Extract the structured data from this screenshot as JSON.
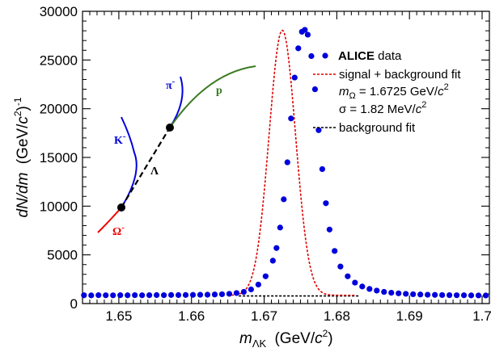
{
  "chart_data": {
    "type": "scatter",
    "x_axis": {
      "range": [
        1.645,
        1.701
      ],
      "ticks": [
        1.65,
        1.66,
        1.67,
        1.68,
        1.69,
        1.7
      ],
      "tick_labels": [
        "1.65",
        "1.66",
        "1.67",
        "1.68",
        "1.69",
        "1.7"
      ],
      "label_main": "m",
      "label_sub": "ΛK",
      "label_unit": "(GeV/",
      "label_unit_c": "c",
      "label_unit_exp": "2",
      "label_unit_close": ")"
    },
    "y_axis": {
      "range": [
        0,
        30000
      ],
      "ticks": [
        0,
        5000,
        10000,
        15000,
        20000,
        25000,
        30000
      ],
      "tick_labels": [
        "0",
        "5000",
        "10000",
        "15000",
        "20000",
        "25000",
        "30000"
      ],
      "label_part1": "dN/dm",
      "label_part2": "(GeV/",
      "label_part3": "c",
      "label_part4": "2",
      "label_part5": ")",
      "label_part6": "-1"
    },
    "series": [
      {
        "name": "ALICE data",
        "marker": "circle",
        "color": "#0000dd",
        "points": [
          [
            1.6452,
            850
          ],
          [
            1.6462,
            840
          ],
          [
            1.6472,
            860
          ],
          [
            1.6482,
            850
          ],
          [
            1.6492,
            845
          ],
          [
            1.6502,
            860
          ],
          [
            1.6512,
            850
          ],
          [
            1.6522,
            865
          ],
          [
            1.6532,
            850
          ],
          [
            1.6542,
            860
          ],
          [
            1.6552,
            870
          ],
          [
            1.6562,
            860
          ],
          [
            1.6572,
            880
          ],
          [
            1.6582,
            870
          ],
          [
            1.6592,
            880
          ],
          [
            1.6602,
            890
          ],
          [
            1.6612,
            900
          ],
          [
            1.6622,
            910
          ],
          [
            1.6632,
            930
          ],
          [
            1.6642,
            960
          ],
          [
            1.6652,
            1000
          ],
          [
            1.6662,
            1080
          ],
          [
            1.6672,
            1200
          ],
          [
            1.6682,
            1450
          ],
          [
            1.6692,
            1950
          ],
          [
            1.6702,
            2800
          ],
          [
            1.6712,
            4400
          ],
          [
            1.6717,
            5700
          ],
          [
            1.6722,
            7800
          ],
          [
            1.6727,
            10700
          ],
          [
            1.6732,
            14500
          ],
          [
            1.6737,
            19000
          ],
          [
            1.6742,
            23200
          ],
          [
            1.6747,
            26200
          ],
          [
            1.6752,
            27900
          ],
          [
            1.6756,
            28100
          ],
          [
            1.676,
            27600
          ],
          [
            1.6765,
            25400
          ],
          [
            1.677,
            22000
          ],
          [
            1.6775,
            17800
          ],
          [
            1.678,
            13800
          ],
          [
            1.6785,
            10300
          ],
          [
            1.679,
            7600
          ],
          [
            1.6797,
            5400
          ],
          [
            1.6805,
            3800
          ],
          [
            1.6815,
            2800
          ],
          [
            1.6825,
            2150
          ],
          [
            1.6835,
            1750
          ],
          [
            1.6845,
            1500
          ],
          [
            1.6855,
            1330
          ],
          [
            1.6865,
            1200
          ],
          [
            1.6875,
            1110
          ],
          [
            1.6885,
            1050
          ],
          [
            1.6895,
            1000
          ],
          [
            1.6905,
            960
          ],
          [
            1.6915,
            930
          ],
          [
            1.6925,
            905
          ],
          [
            1.6935,
            890
          ],
          [
            1.6945,
            875
          ],
          [
            1.6955,
            865
          ],
          [
            1.6965,
            855
          ],
          [
            1.6975,
            850
          ],
          [
            1.6985,
            840
          ],
          [
            1.6995,
            835
          ],
          [
            1.7005,
            830
          ]
        ]
      }
    ],
    "fits": [
      {
        "name": "signal + background fit",
        "style": "dotted",
        "color": "#dd0000",
        "mean": 1.6725,
        "sigma": 0.00182,
        "amplitude": 27200,
        "background": 850
      },
      {
        "name": "background fit",
        "style": "dotted",
        "color": "#000000",
        "x_range": [
          1.6665,
          1.683
        ],
        "value": 780
      }
    ],
    "legend": {
      "position": "top-right",
      "entry_data_bold": "ALICE",
      "entry_data_rest": " data",
      "entry_fit": "signal + background fit",
      "mass_symbol": "m",
      "mass_sub": "Ω",
      "mass_value": " = 1.6725 GeV/",
      "mass_c": "c",
      "mass_exp": "2",
      "sigma_text": "σ = 1.82 MeV/",
      "sigma_c": "c",
      "sigma_exp": "2",
      "entry_bkg": "background fit"
    },
    "decay_sketch": {
      "omega_label": "Ω",
      "omega_sup": "-",
      "kaon_label": "K",
      "kaon_sup": "-",
      "lambda_label": "Λ",
      "pion_label": "π",
      "pion_sup": "-",
      "proton_label": "p",
      "colors": {
        "omega": "#ee0000",
        "kaon": "#0000dd",
        "pion": "#0000dd",
        "proton": "#3a7a20",
        "lambda": "#000000"
      }
    },
    "grid": false
  }
}
